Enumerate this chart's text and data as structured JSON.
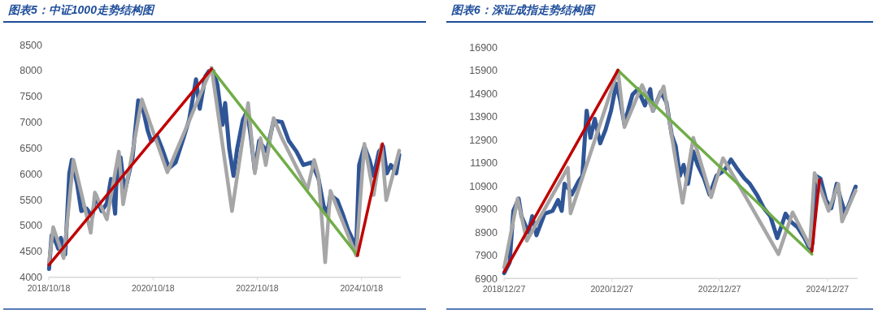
{
  "chart_data": [
    {
      "type": "line",
      "title": "图表5：中证1000走势结构图",
      "xlim": [
        "2018-10-18",
        "2025-07-20"
      ],
      "ylim": [
        4000,
        8500
      ],
      "xticks": [
        {
          "value": "2018-10-18",
          "label": "2018/10/18"
        },
        {
          "value": "2020-10-18",
          "label": "2020/10/18"
        },
        {
          "value": "2022-10-18",
          "label": "2022/10/18"
        },
        {
          "value": "2024-10-18",
          "label": "2024/10/18"
        }
      ],
      "yticks": [
        4000,
        4500,
        5000,
        5500,
        6000,
        6500,
        7000,
        7500,
        8000,
        8500
      ],
      "series": [
        {
          "color": "#2f5597",
          "x": [
            "2018-10-20",
            "2018-11-07",
            "2018-11-25",
            "2018-12-24",
            "2019-01-11",
            "2019-02-10",
            "2019-03-11",
            "2019-03-29",
            "2019-05-05",
            "2019-06-03",
            "2019-07-09",
            "2019-08-19",
            "2019-09-13",
            "2019-10-23",
            "2019-11-29",
            "2019-12-28",
            "2020-01-26",
            "2020-02-03",
            "2020-03-04",
            "2020-04-02",
            "2020-05-27",
            "2020-07-06",
            "2020-07-31",
            "2020-09-10",
            "2020-10-05",
            "2020-11-14",
            "2020-12-21",
            "2021-02-06",
            "2021-03-25",
            "2021-05-19",
            "2021-06-28",
            "2021-08-15",
            "2021-09-10",
            "2021-10-20",
            "2021-11-14",
            "2021-12-13",
            "2022-01-11",
            "2022-02-17",
            "2022-03-07",
            "2022-04-05",
            "2022-05-05",
            "2022-05-30",
            "2022-07-09",
            "2022-08-08",
            "2022-09-02",
            "2022-10-01",
            "2022-10-31",
            "2022-12-24",
            "2023-02-10",
            "2023-04-09",
            "2023-05-27",
            "2023-07-20",
            "2023-09-06",
            "2023-11-03",
            "2023-12-21",
            "2024-01-26",
            "2024-02-24",
            "2024-03-14",
            "2024-05-01",
            "2024-06-07",
            "2024-07-17",
            "2024-08-22",
            "2024-09-10",
            "2024-10-01",
            "2024-11-07",
            "2024-12-13",
            "2025-01-11",
            "2025-02-17",
            "2025-03-18",
            "2025-04-13",
            "2025-05-12",
            "2025-06-18",
            "2025-07-09"
          ],
          "values": [
            4160,
            4810,
            4760,
            4550,
            4760,
            4440,
            6010,
            6270,
            5800,
            5280,
            5330,
            5170,
            5590,
            5280,
            5430,
            5900,
            5230,
            5770,
            6320,
            5640,
            6320,
            7420,
            7360,
            6840,
            6630,
            6740,
            6480,
            6110,
            6220,
            6690,
            7050,
            7830,
            7260,
            7890,
            7990,
            7990,
            7730,
            6950,
            7370,
            6480,
            5960,
            6480,
            7040,
            7210,
            6740,
            6060,
            6640,
            6430,
            7030,
            7000,
            6640,
            6430,
            6170,
            6220,
            5910,
            5380,
            5230,
            5590,
            5490,
            5230,
            4910,
            4700,
            4550,
            6170,
            6530,
            6270,
            5960,
            6430,
            6530,
            6010,
            6170,
            6010,
            6370
          ]
        },
        {
          "color": "#a6a6a6",
          "x": [
            "2018-10-20",
            "2018-11-18",
            "2019-01-30",
            "2019-04-09",
            "2019-08-08",
            "2019-09-06",
            "2019-11-29",
            "2020-02-21",
            "2020-03-22",
            "2020-07-31",
            "2021-01-26",
            "2021-12-02",
            "2022-04-24",
            "2022-08-15",
            "2022-10-01",
            "2022-11-10",
            "2022-12-17",
            "2023-02-10",
            "2023-04-09",
            "2023-10-05",
            "2023-11-21",
            "2023-12-21",
            "2024-02-06",
            "2024-03-14",
            "2024-09-10",
            "2024-11-07",
            "2025-01-11",
            "2025-03-07",
            "2025-04-09",
            "2025-07-09"
          ],
          "values": [
            4290,
            4970,
            4370,
            6270,
            4860,
            5640,
            5120,
            6430,
            5410,
            7440,
            6030,
            8050,
            5280,
            7370,
            6010,
            6690,
            6170,
            7080,
            6690,
            5700,
            6270,
            5960,
            4290,
            5670,
            4420,
            6580,
            5590,
            6560,
            5490,
            6450
          ]
        },
        {
          "color": "#70ad47",
          "x": [
            "2021-12-02",
            "2024-09-20"
          ],
          "values": [
            8030,
            4420
          ]
        },
        {
          "color": "#c00000",
          "x": [
            "2018-10-20",
            "2021-12-02"
          ],
          "values": [
            4240,
            8030
          ]
        },
        {
          "color": "#c00000",
          "x": [
            "2024-09-20",
            "2025-03-14"
          ],
          "values": [
            4420,
            6580
          ]
        }
      ]
    },
    {
      "type": "line",
      "title": "图表6：深证成指走势结构图",
      "xlim": [
        "2018-12-27",
        "2025-07-20"
      ],
      "ylim": [
        6900,
        16900
      ],
      "xticks": [
        {
          "value": "2018-12-27",
          "label": "2018/12/27"
        },
        {
          "value": "2020-12-27",
          "label": "2020/12/27"
        },
        {
          "value": "2022-12-27",
          "label": "2022/12/27"
        },
        {
          "value": "2024-12-27",
          "label": "2024/12/27"
        }
      ],
      "yticks": [
        6900,
        7900,
        8900,
        9900,
        10900,
        11900,
        12900,
        13900,
        14900,
        15900,
        16900
      ],
      "series": [
        {
          "color": "#2f5597",
          "x": [
            "2018-12-28",
            "2019-02-03",
            "2019-02-28",
            "2019-04-05",
            "2019-04-24",
            "2019-06-10",
            "2019-07-06",
            "2019-08-04",
            "2019-09-28",
            "2019-11-21",
            "2019-12-28",
            "2020-01-22",
            "2020-02-10",
            "2020-03-11",
            "2020-03-29",
            "2020-05-16",
            "2020-06-10",
            "2020-07-09",
            "2020-08-04",
            "2020-09-02",
            "2020-10-09",
            "2020-11-14",
            "2020-12-21",
            "2021-01-26",
            "2021-02-21",
            "2021-03-22",
            "2021-04-20",
            "2021-05-16",
            "2021-06-21",
            "2021-08-08",
            "2021-09-13",
            "2021-10-01",
            "2021-11-25",
            "2022-01-01",
            "2022-02-06",
            "2022-03-04",
            "2022-04-02",
            "2022-04-27",
            "2022-05-27",
            "2022-07-02",
            "2022-07-31",
            "2022-09-13",
            "2022-10-20",
            "2022-12-06",
            "2023-01-30",
            "2023-03-14",
            "2023-04-20",
            "2023-06-14",
            "2023-07-20",
            "2023-09-06",
            "2023-10-23",
            "2023-12-06",
            "2024-01-22",
            "2024-02-17",
            "2024-03-18",
            "2024-04-24",
            "2024-06-07",
            "2024-07-24",
            "2024-08-30",
            "2024-09-17",
            "2024-10-09",
            "2024-11-10",
            "2024-12-17",
            "2025-01-22",
            "2025-02-28",
            "2025-03-29",
            "2025-04-27",
            "2025-06-03",
            "2025-07-06"
          ],
          "values": [
            7130,
            7600,
            9820,
            10350,
            9590,
            8890,
            9590,
            8770,
            9700,
            9820,
            10290,
            9820,
            10990,
            10760,
            10520,
            11110,
            11340,
            14150,
            12980,
            13800,
            12740,
            13330,
            14150,
            15320,
            14620,
            13560,
            14270,
            14850,
            15080,
            14380,
            15080,
            14150,
            14970,
            14500,
            13090,
            12630,
            11340,
            11810,
            10990,
            12390,
            11810,
            11220,
            10520,
            11340,
            11580,
            12040,
            11690,
            11220,
            10990,
            10520,
            9940,
            9590,
            8650,
            9120,
            9700,
            9350,
            9120,
            8650,
            8180,
            8420,
            11340,
            11220,
            10290,
            9940,
            10990,
            10290,
            9700,
            10290,
            10870
          ]
        },
        {
          "color": "#a6a6a6",
          "x": [
            "2018-12-28",
            "2019-03-29",
            "2019-05-30",
            "2020-03-04",
            "2020-03-22",
            "2021-02-06",
            "2021-03-22",
            "2021-07-20",
            "2021-10-01",
            "2021-12-13",
            "2022-04-20",
            "2022-07-02",
            "2022-10-31",
            "2023-01-19",
            "2023-06-14",
            "2024-01-30",
            "2024-05-05",
            "2024-08-30",
            "2024-10-01",
            "2025-01-04",
            "2025-03-11",
            "2025-04-05",
            "2025-07-06"
          ],
          "values": [
            7370,
            10350,
            8530,
            11690,
            9710,
            15900,
            13440,
            15260,
            14150,
            15200,
            10170,
            12980,
            10410,
            12100,
            10520,
            7950,
            9760,
            8300,
            11460,
            9820,
            10990,
            9360,
            10700
          ]
        },
        {
          "color": "#70ad47",
          "x": [
            "2021-02-06",
            "2024-09-13"
          ],
          "values": [
            15900,
            7950
          ]
        },
        {
          "color": "#c00000",
          "x": [
            "2018-12-28",
            "2021-02-06"
          ],
          "values": [
            7190,
            15900
          ]
        },
        {
          "color": "#c00000",
          "x": [
            "2024-09-13",
            "2024-11-03"
          ],
          "values": [
            8070,
            11170
          ]
        }
      ]
    }
  ]
}
